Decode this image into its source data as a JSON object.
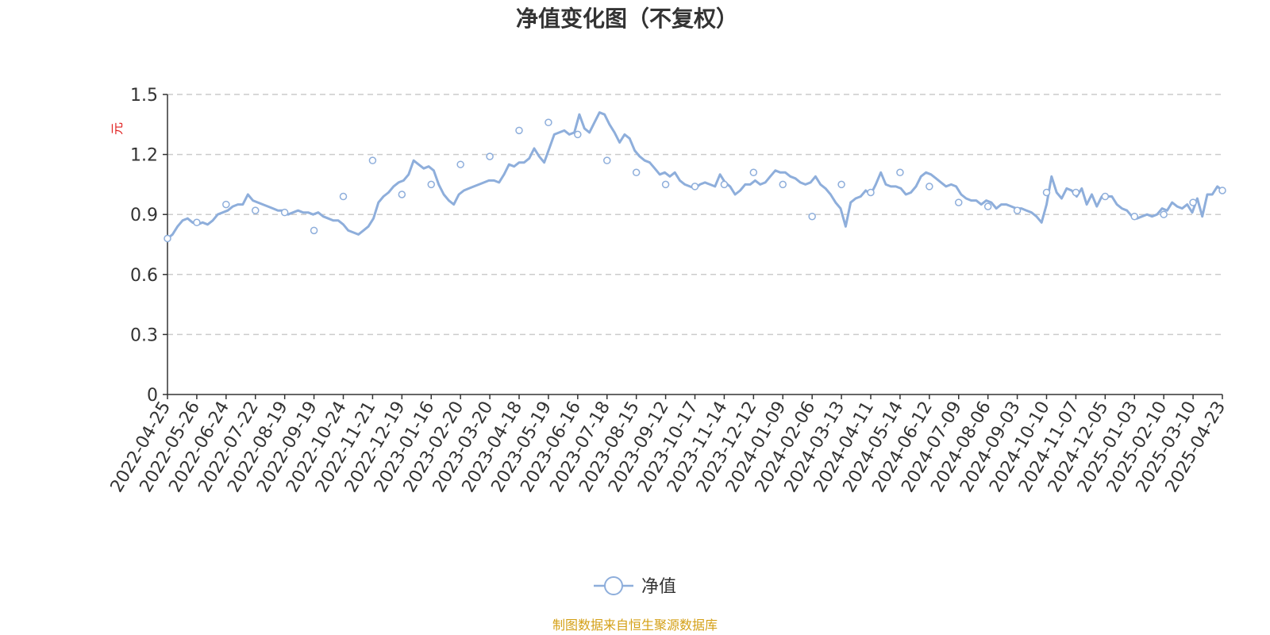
{
  "chart_data": {
    "type": "line",
    "title": "净值变化图（不复权）",
    "ylabel": "元",
    "ylim": [
      0,
      1.5
    ],
    "yticks": [
      0,
      0.3,
      0.6,
      0.9,
      1.2,
      1.5
    ],
    "ytick_labels": [
      "0",
      "0.3",
      "0.6",
      "0.9",
      "1.2",
      "1.5"
    ],
    "x_tick_labels": [
      "2022-04-25",
      "2022-05-26",
      "2022-06-24",
      "2022-07-22",
      "2022-08-19",
      "2022-09-19",
      "2022-10-24",
      "2022-11-21",
      "2022-12-19",
      "2023-01-16",
      "2023-02-20",
      "2023-03-20",
      "2023-04-18",
      "2023-05-19",
      "2023-06-16",
      "2023-07-18",
      "2023-08-15",
      "2023-09-12",
      "2023-10-17",
      "2023-11-14",
      "2023-12-12",
      "2024-01-09",
      "2024-02-06",
      "2024-03-13",
      "2024-04-11",
      "2024-05-14",
      "2024-06-12",
      "2024-07-09",
      "2024-08-06",
      "2024-09-03",
      "2024-10-10",
      "2024-11-07",
      "2024-12-05",
      "2025-01-03",
      "2025-02-10",
      "2025-03-10",
      "2025-04-23"
    ],
    "grid": true,
    "legend_position": "bottom",
    "series": [
      {
        "name": "净值",
        "color": "#8eaedb",
        "x": [
          "2022-04-25",
          "2022-05-26",
          "2022-06-24",
          "2022-07-22",
          "2022-08-19",
          "2022-09-19",
          "2022-10-24",
          "2022-11-21",
          "2022-12-19",
          "2023-01-16",
          "2023-02-20",
          "2023-03-20",
          "2023-04-18",
          "2023-05-19",
          "2023-06-16",
          "2023-07-18",
          "2023-08-15",
          "2023-09-12",
          "2023-10-17",
          "2023-11-14",
          "2023-12-12",
          "2024-01-09",
          "2024-02-06",
          "2024-03-13",
          "2024-04-11",
          "2024-05-14",
          "2024-06-12",
          "2024-07-09",
          "2024-08-06",
          "2024-09-03",
          "2024-10-10",
          "2024-11-07",
          "2024-12-05",
          "2025-01-03",
          "2025-02-10",
          "2025-03-10",
          "2025-04-23"
        ],
        "values": [
          0.78,
          0.86,
          0.95,
          0.92,
          0.91,
          0.82,
          0.99,
          1.17,
          1.0,
          1.05,
          1.15,
          1.19,
          1.32,
          1.36,
          1.3,
          1.17,
          1.11,
          1.05,
          1.04,
          1.05,
          1.11,
          1.05,
          0.89,
          1.05,
          1.01,
          1.11,
          1.04,
          0.96,
          0.94,
          0.92,
          1.01,
          1.01,
          0.99,
          0.89,
          0.9,
          0.96,
          1.02
        ],
        "dense_values": [
          0.78,
          0.8,
          0.84,
          0.87,
          0.88,
          0.86,
          0.85,
          0.86,
          0.85,
          0.87,
          0.9,
          0.91,
          0.92,
          0.94,
          0.95,
          0.95,
          1.0,
          0.97,
          0.96,
          0.95,
          0.94,
          0.93,
          0.92,
          0.92,
          0.9,
          0.91,
          0.92,
          0.91,
          0.91,
          0.9,
          0.91,
          0.89,
          0.88,
          0.87,
          0.87,
          0.85,
          0.82,
          0.81,
          0.8,
          0.82,
          0.84,
          0.88,
          0.96,
          0.99,
          1.01,
          1.04,
          1.06,
          1.07,
          1.1,
          1.17,
          1.15,
          1.13,
          1.14,
          1.12,
          1.05,
          1.0,
          0.97,
          0.95,
          1.0,
          1.02,
          1.03,
          1.04,
          1.05,
          1.06,
          1.07,
          1.07,
          1.06,
          1.1,
          1.15,
          1.14,
          1.16,
          1.16,
          1.18,
          1.23,
          1.19,
          1.16,
          1.23,
          1.3,
          1.31,
          1.32,
          1.3,
          1.31,
          1.4,
          1.33,
          1.31,
          1.36,
          1.41,
          1.4,
          1.35,
          1.31,
          1.26,
          1.3,
          1.28,
          1.22,
          1.19,
          1.17,
          1.16,
          1.13,
          1.1,
          1.11,
          1.09,
          1.11,
          1.07,
          1.05,
          1.04,
          1.03,
          1.05,
          1.06,
          1.05,
          1.04,
          1.1,
          1.06,
          1.04,
          1.0,
          1.02,
          1.05,
          1.05,
          1.07,
          1.05,
          1.06,
          1.09,
          1.12,
          1.11,
          1.11,
          1.09,
          1.08,
          1.06,
          1.05,
          1.06,
          1.09,
          1.05,
          1.03,
          1.0,
          0.96,
          0.93,
          0.84,
          0.96,
          0.98,
          0.99,
          1.02,
          1.0,
          1.05,
          1.11,
          1.05,
          1.04,
          1.04,
          1.03,
          1.0,
          1.01,
          1.04,
          1.09,
          1.11,
          1.1,
          1.08,
          1.06,
          1.04,
          1.05,
          1.04,
          1.0,
          0.98,
          0.97,
          0.97,
          0.95,
          0.97,
          0.96,
          0.93,
          0.95,
          0.95,
          0.94,
          0.93,
          0.93,
          0.92,
          0.91,
          0.89,
          0.86,
          0.95,
          1.09,
          1.01,
          0.98,
          1.03,
          1.02,
          0.99,
          1.03,
          0.95,
          1.0,
          0.94,
          0.99,
          0.99,
          0.99,
          0.95,
          0.93,
          0.92,
          0.89,
          0.88,
          0.89,
          0.9,
          0.89,
          0.9,
          0.93,
          0.92,
          0.96,
          0.94,
          0.93,
          0.95,
          0.91,
          0.98,
          0.89,
          1.0,
          1.0,
          1.04,
          1.02
        ]
      }
    ]
  },
  "source_note": "制图数据来自恒生聚源数据库",
  "colors": {
    "line": "#8eaedb",
    "axis": "#333333",
    "grid": "#cccccc",
    "ylabel": "#e02020",
    "source": "#d4a017"
  }
}
